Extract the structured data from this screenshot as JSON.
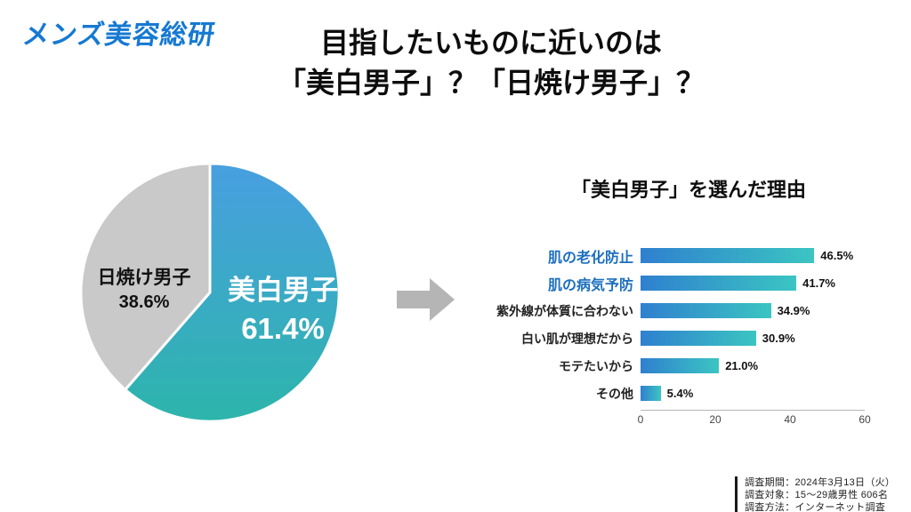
{
  "logo": {
    "text": "メンズ美容総研",
    "color": "#1679d2"
  },
  "title": {
    "line1": "目指したいものに近いのは",
    "line2": "「美白男子」？「日焼け男子」？"
  },
  "chart_data": [
    {
      "type": "pie",
      "question": "目指したいものに近いのは「美白男子」？「日焼け男子」？",
      "slices": [
        {
          "label": "美白男子",
          "value": 61.4,
          "display": "61.4%",
          "color": "#3e92d8",
          "gradient": [
            "#489fe0",
            "#2db5ab"
          ],
          "text_color": "#ffffff"
        },
        {
          "label": "日焼け男子",
          "value": 38.6,
          "display": "38.6%",
          "color": "#c9c9ca",
          "text_color": "#1a1a1a"
        }
      ]
    },
    {
      "type": "bar",
      "title": "「美白男子」を選んだ理由",
      "orientation": "horizontal",
      "categories": [
        "肌の老化防止",
        "肌の病気予防",
        "紫外線が体質に合わない",
        "白い肌が理想だから",
        "モテたいから",
        "その他"
      ],
      "values": [
        46.5,
        41.7,
        34.9,
        30.9,
        21.0,
        5.4
      ],
      "value_labels": [
        "46.5%",
        "41.7%",
        "34.9%",
        "30.9%",
        "21.0%",
        "5.4%"
      ],
      "emphasized": [
        true,
        true,
        false,
        false,
        false,
        false
      ],
      "emphasis_color": "#1c6fbf",
      "bar_gradient": [
        "#2f80cf",
        "#3bc5c2"
      ],
      "xlim": [
        0,
        60
      ],
      "xticks": [
        0,
        20,
        40,
        60
      ],
      "legend": "none",
      "grid": false
    }
  ],
  "arrow_color": "#b5b5b5",
  "footer": {
    "line1": "調査期間：2024年3月13日（火）",
    "line2": "調査対象：15〜29歳男性 606名",
    "line3": "調査方法：インターネット調査"
  }
}
